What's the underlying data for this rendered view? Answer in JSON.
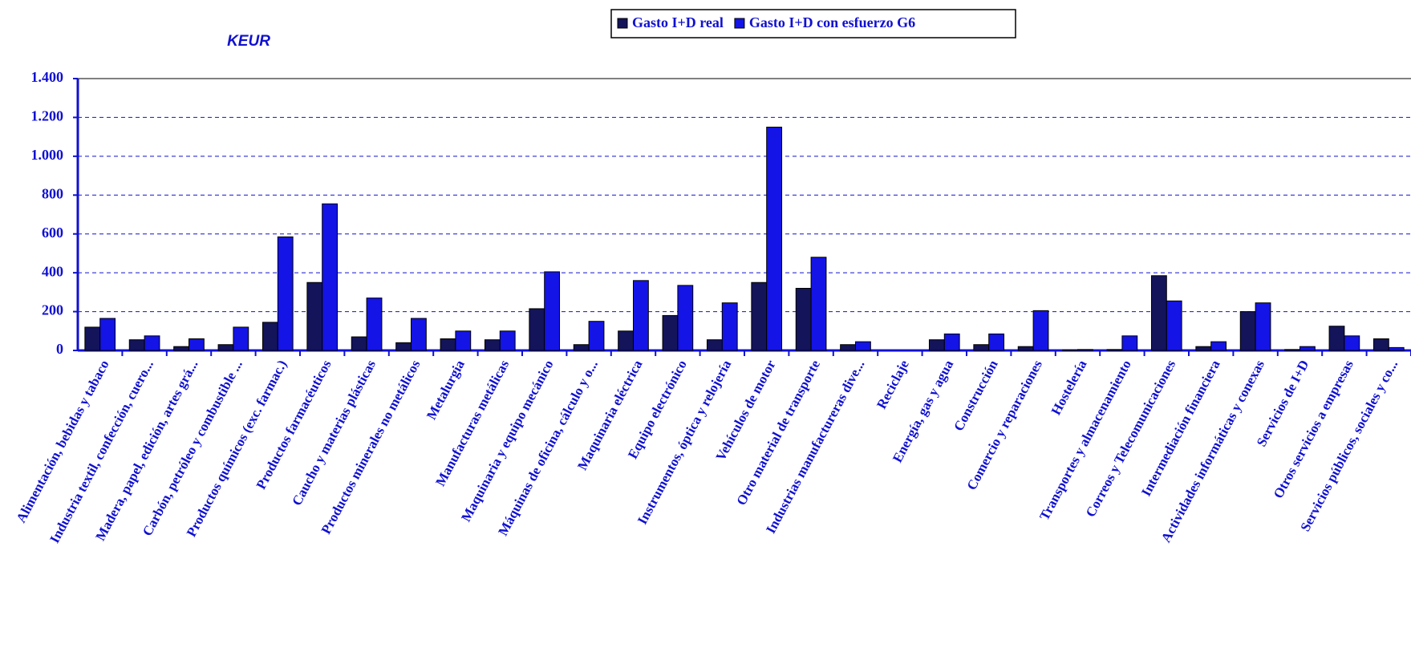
{
  "chart_data": {
    "type": "bar",
    "y_label": "KEUR",
    "categories": [
      "Alimentación, bebidas y tabaco",
      "Industria textil, confección, cuero...",
      "Madera, papel, edición, artes grá...",
      "Carbón, petróleo y combustible ...",
      "Productos químicos (exc. farmac.)",
      "Productos farmacéuticos",
      "Caucho y materias plásticas",
      "Productos minerales no metálicos",
      "Metalurgia",
      "Manufacturas metálicas",
      "Maquinaria y equipo mecánico",
      "Máquinas de oficina, cálculo y o...",
      "Maquinaria eléctrica",
      "Equipo electrónico",
      "Instrumentos, óptica y relojería",
      "Vehículos de motor",
      "Otro material de transporte",
      "Industrias manufactureras dive...",
      "Reciclaje",
      "Energía, gas y agua",
      "Construcción",
      "Comercio  y reparaciones",
      "Hostelería",
      "Transportes y almacenamiento",
      "Correos y Telecomunicaciones",
      "Intermediación financiera",
      "Actividades informáticas y conexas",
      "Servicios de I+D",
      "Otros servicios a empresas",
      "Servicios públicos, sociales y co..."
    ],
    "series": [
      {
        "name": "Gasto I+D real",
        "color": "#14145a",
        "values": [
          120,
          55,
          20,
          30,
          145,
          350,
          70,
          40,
          60,
          55,
          215,
          30,
          100,
          180,
          55,
          350,
          320,
          30,
          0,
          55,
          30,
          20,
          3,
          5,
          385,
          20,
          200,
          5,
          125,
          60
        ]
      },
      {
        "name": "Gasto I+D con esfuerzo G6",
        "color": "#1414e6",
        "values": [
          165,
          75,
          60,
          120,
          585,
          755,
          270,
          165,
          100,
          100,
          405,
          150,
          360,
          335,
          245,
          1150,
          480,
          45,
          0,
          85,
          85,
          205,
          5,
          75,
          255,
          45,
          245,
          20,
          75,
          15
        ]
      }
    ],
    "ylim": [
      0,
      1400
    ],
    "yticks": [
      0,
      200,
      400,
      600,
      800,
      {
        "value": 1000,
        "label": "1.000"
      },
      {
        "value": 1200,
        "label": "1.200"
      },
      {
        "value": 1400,
        "label": "1.400"
      }
    ],
    "grid": true,
    "legend": "top"
  }
}
